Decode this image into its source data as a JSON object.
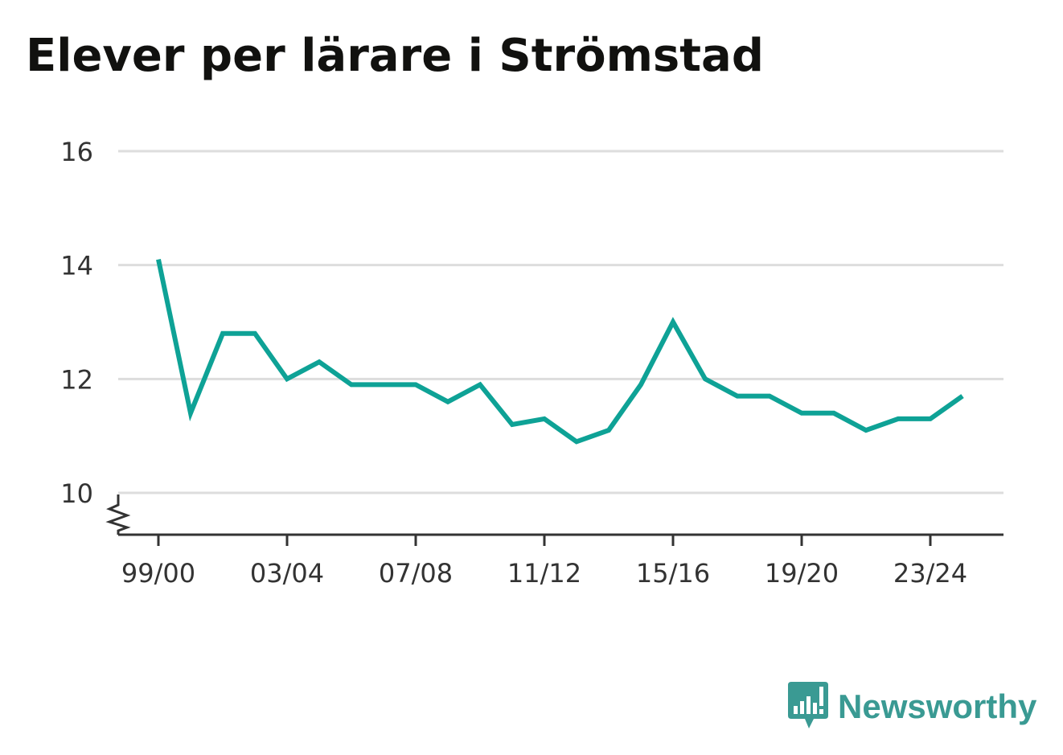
{
  "title": "Elever per lärare i Strömstad",
  "brand": {
    "name": "Newsworthy",
    "icon": "newsworthy-logo-icon",
    "color": "#3a9a93"
  },
  "colors": {
    "series": "#0ea296",
    "grid": "#dddddd",
    "axis": "#333333",
    "text": "#333333",
    "title": "#11110f"
  },
  "chart_data": {
    "type": "line",
    "title": "Elever per lärare i Strömstad",
    "xlabel": "",
    "ylabel": "",
    "ylim": [
      10,
      16
    ],
    "y_axis_break": true,
    "grid": true,
    "yticks": [
      "10",
      "12",
      "14",
      "16"
    ],
    "xticks": [
      "99/00",
      "03/04",
      "07/08",
      "11/12",
      "15/16",
      "19/20",
      "23/24"
    ],
    "categories": [
      "99/00",
      "00/01",
      "01/02",
      "02/03",
      "03/04",
      "04/05",
      "05/06",
      "06/07",
      "07/08",
      "08/09",
      "09/10",
      "10/11",
      "11/12",
      "12/13",
      "13/14",
      "14/15",
      "15/16",
      "16/17",
      "17/18",
      "18/19",
      "19/20",
      "20/21",
      "21/22",
      "22/23",
      "23/24",
      "24/25"
    ],
    "series": [
      {
        "values": [
          14.1,
          11.4,
          12.8,
          12.8,
          12.0,
          12.3,
          11.9,
          11.9,
          11.9,
          11.6,
          11.9,
          11.2,
          11.3,
          10.9,
          11.1,
          11.9,
          13.0,
          12.0,
          11.7,
          11.7,
          11.4,
          11.4,
          11.1,
          11.3,
          11.3,
          11.7
        ]
      }
    ]
  }
}
